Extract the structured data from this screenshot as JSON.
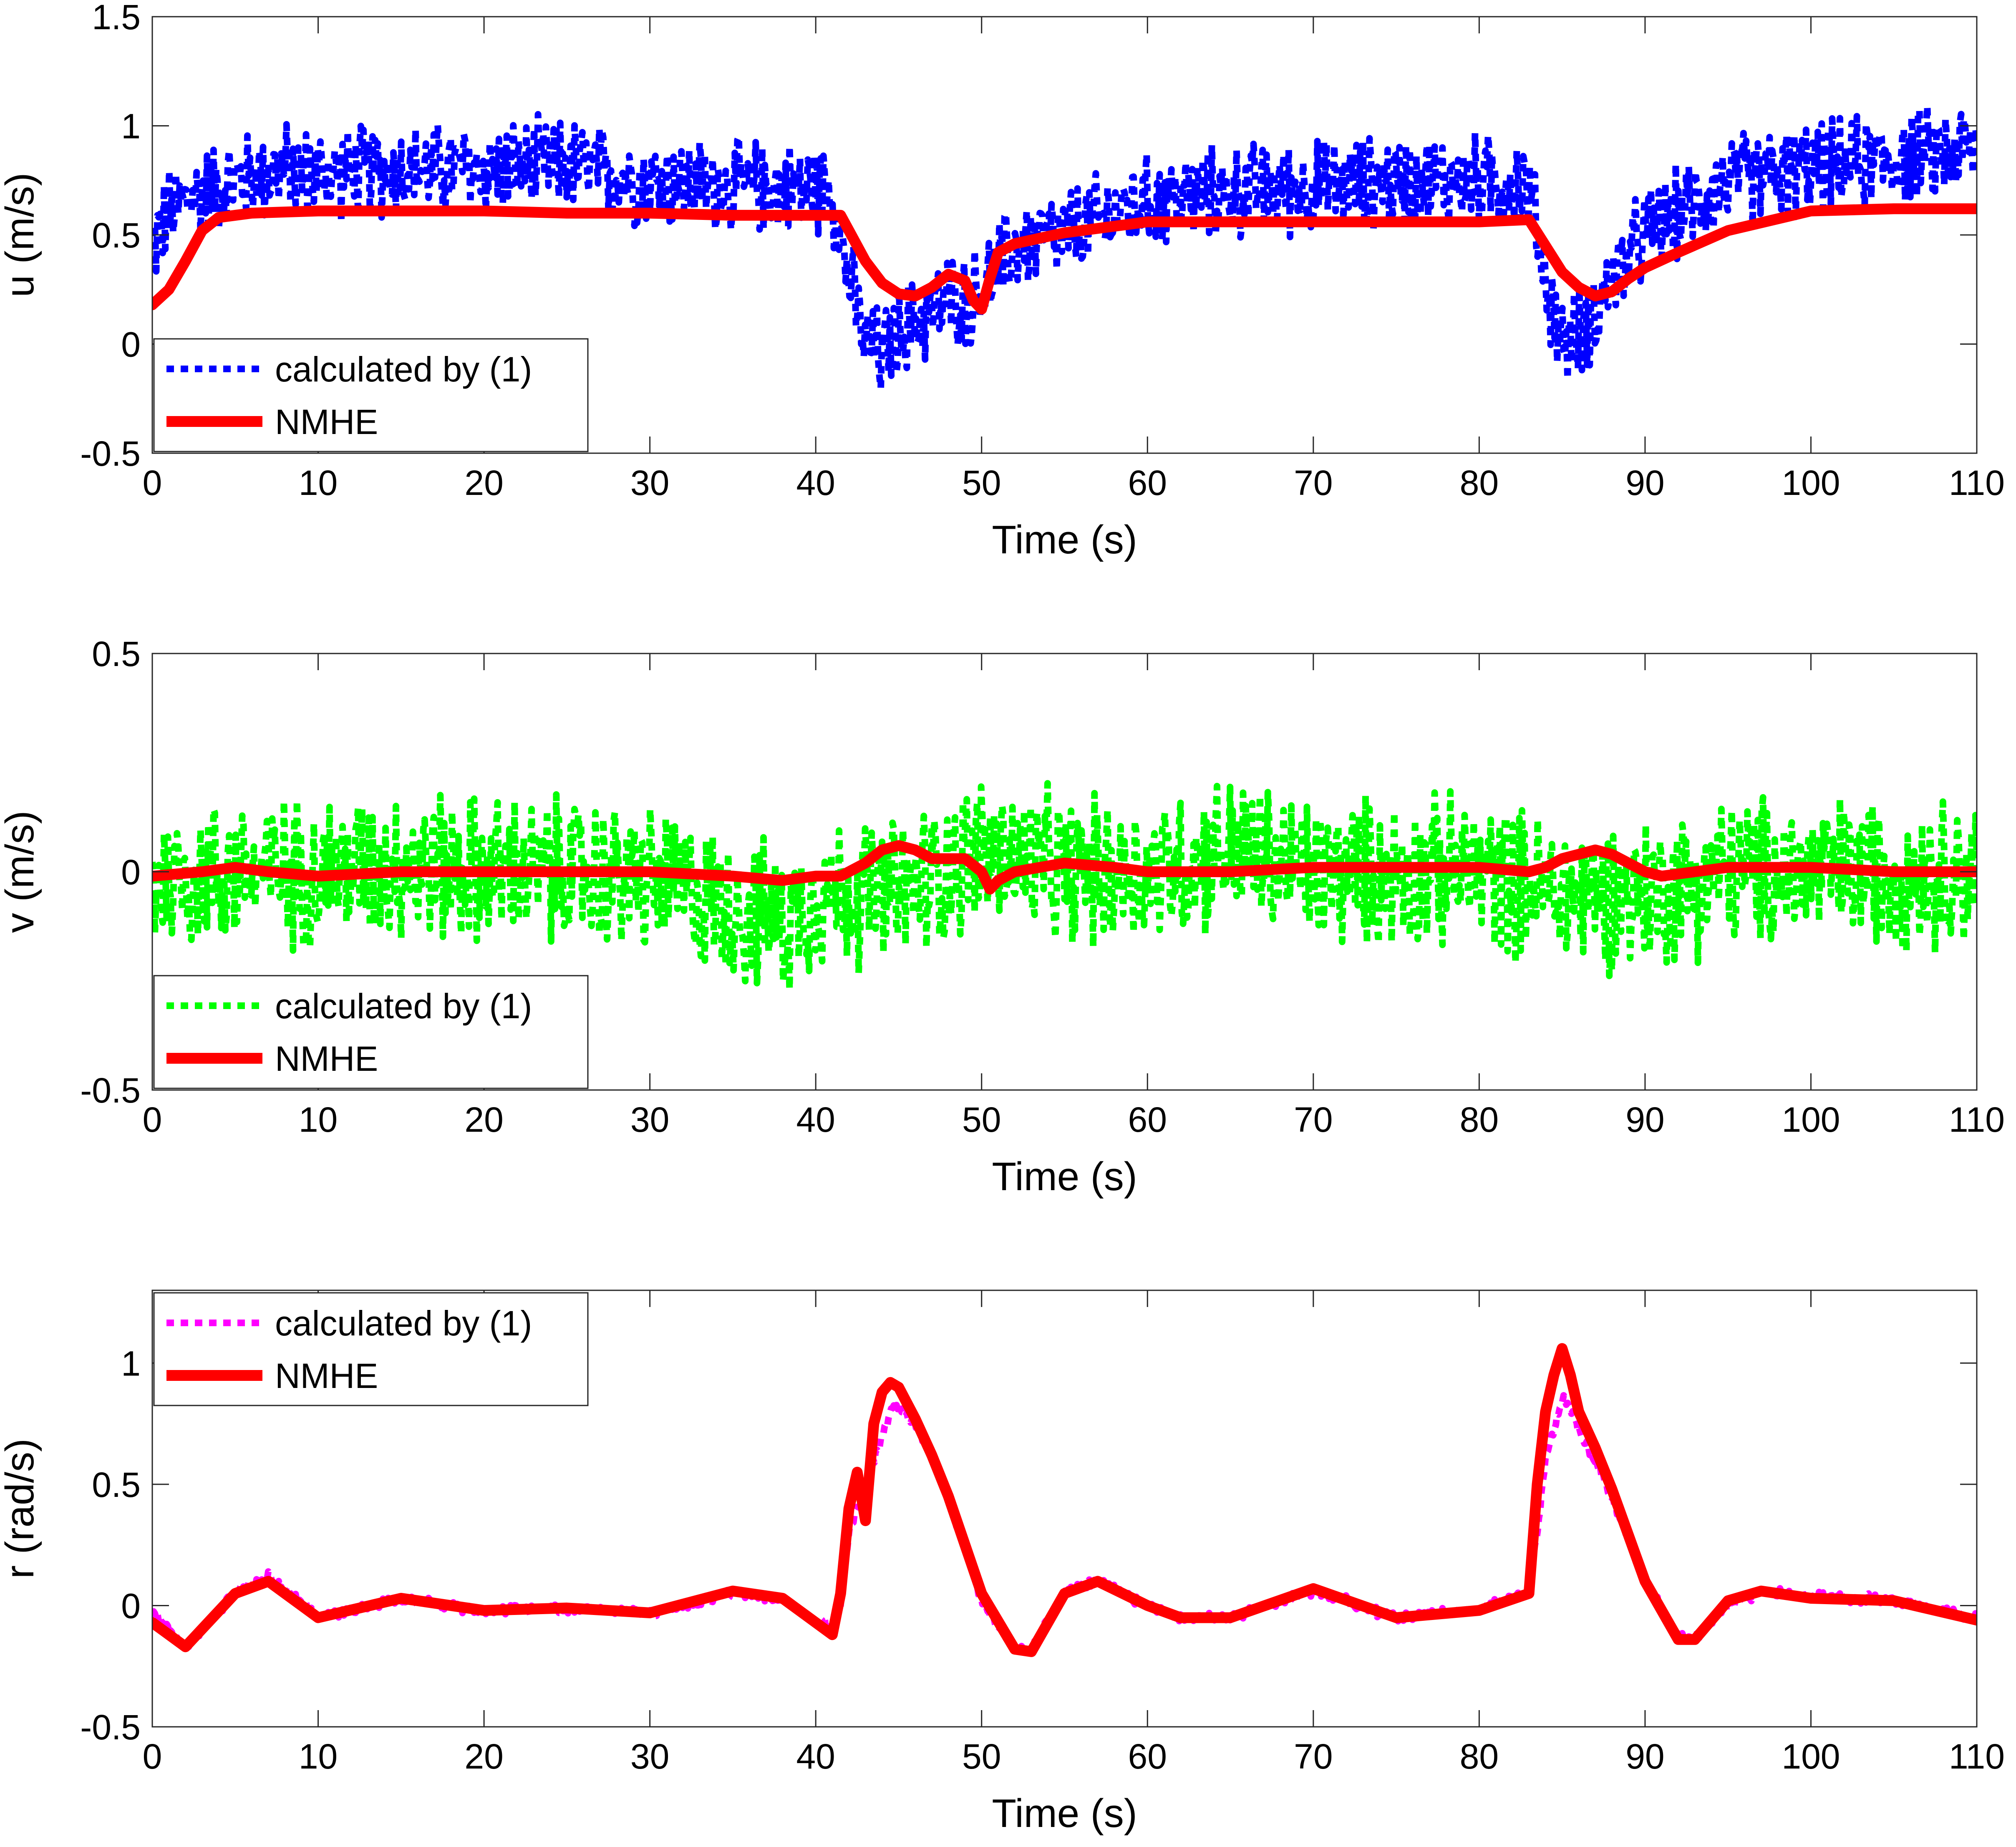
{
  "chart_data": [
    {
      "type": "line",
      "id": "u",
      "xlabel": "Time (s)",
      "ylabel": "u (m/s)",
      "xlim": [
        0,
        110
      ],
      "ylim": [
        -0.5,
        1.5
      ],
      "xticks": [
        "0",
        "10",
        "20",
        "30",
        "40",
        "50",
        "60",
        "70",
        "80",
        "90",
        "100",
        "110"
      ],
      "yticks": [
        "-0.5",
        "0",
        "0.5",
        "1",
        "1.5"
      ],
      "legend_position": "bottom-left",
      "series": [
        {
          "name": "calculated by (1)",
          "color": "#0000ff",
          "style": "dotted",
          "noise_amplitude": 0.25,
          "x": [
            0,
            1,
            3,
            5,
            8,
            10,
            15,
            20,
            25,
            30,
            35,
            40,
            41,
            42,
            43,
            44,
            45,
            46,
            47,
            48,
            49,
            50,
            51,
            52,
            55,
            58,
            60,
            65,
            70,
            75,
            80,
            82,
            83,
            84,
            85,
            86,
            87,
            88,
            89,
            90,
            92,
            95,
            100,
            105,
            110
          ],
          "y": [
            0.45,
            0.6,
            0.7,
            0.75,
            0.8,
            0.78,
            0.8,
            0.8,
            0.82,
            0.75,
            0.72,
            0.72,
            0.7,
            0.3,
            0.0,
            -0.05,
            0.05,
            0.1,
            0.15,
            0.2,
            0.2,
            0.25,
            0.35,
            0.45,
            0.5,
            0.6,
            0.65,
            0.7,
            0.72,
            0.75,
            0.75,
            0.75,
            0.72,
            0.3,
            0.0,
            0.05,
            0.15,
            0.3,
            0.4,
            0.5,
            0.6,
            0.75,
            0.8,
            0.85,
            0.9
          ]
        },
        {
          "name": "NMHE",
          "color": "#ff0000",
          "style": "solid",
          "x": [
            0,
            1,
            2,
            3,
            4,
            6,
            10,
            15,
            20,
            25,
            30,
            35,
            40,
            41.5,
            42,
            43,
            44,
            45,
            46,
            47,
            48,
            49,
            49.5,
            50,
            50.5,
            51,
            52,
            55,
            60,
            65,
            70,
            75,
            80,
            83,
            84,
            85,
            86,
            87,
            88,
            89,
            90,
            92,
            95,
            100,
            105,
            110
          ],
          "y": [
            0.18,
            0.25,
            0.38,
            0.52,
            0.58,
            0.6,
            0.61,
            0.61,
            0.61,
            0.6,
            0.6,
            0.59,
            0.59,
            0.59,
            0.52,
            0.38,
            0.28,
            0.23,
            0.22,
            0.26,
            0.32,
            0.29,
            0.2,
            0.16,
            0.3,
            0.42,
            0.46,
            0.51,
            0.56,
            0.56,
            0.56,
            0.56,
            0.56,
            0.57,
            0.45,
            0.33,
            0.26,
            0.22,
            0.24,
            0.3,
            0.35,
            0.42,
            0.52,
            0.61,
            0.62,
            0.62
          ]
        }
      ]
    },
    {
      "type": "line",
      "id": "v",
      "xlabel": "Time (s)",
      "ylabel": "v (m/s)",
      "xlim": [
        0,
        110
      ],
      "ylim": [
        -0.5,
        0.5
      ],
      "xticks": [
        "0",
        "10",
        "20",
        "30",
        "40",
        "50",
        "60",
        "70",
        "80",
        "90",
        "100",
        "110"
      ],
      "yticks": [
        "-0.5",
        "0",
        "0.5"
      ],
      "legend_position": "bottom-left",
      "series": [
        {
          "name": "calculated by (1)",
          "color": "#00ff00",
          "style": "dotted",
          "noise_amplitude": 0.2,
          "x": [
            0,
            5,
            10,
            15,
            20,
            25,
            30,
            35,
            38,
            40,
            45,
            50,
            55,
            60,
            65,
            70,
            75,
            80,
            85,
            90,
            95,
            100,
            105,
            110
          ],
          "y": [
            -0.02,
            0.0,
            0.0,
            0.02,
            0.0,
            0.0,
            -0.02,
            -0.08,
            -0.12,
            -0.05,
            -0.05,
            0.05,
            0.0,
            0.0,
            0.05,
            0.0,
            0.0,
            0.0,
            -0.05,
            -0.05,
            0.0,
            0.0,
            0.0,
            0.0
          ]
        },
        {
          "name": "NMHE",
          "color": "#ff0000",
          "style": "solid",
          "x": [
            0,
            3,
            5,
            7,
            10,
            15,
            20,
            25,
            30,
            35,
            38,
            40,
            41.5,
            43,
            44,
            45,
            46,
            47,
            48,
            49,
            50,
            50.5,
            51,
            52,
            55,
            58,
            60,
            65,
            70,
            75,
            80,
            83,
            84,
            85,
            86,
            87,
            88,
            89,
            90,
            91,
            93,
            95,
            100,
            105,
            110
          ],
          "y": [
            -0.01,
            0.0,
            0.01,
            0.0,
            -0.01,
            0.0,
            0.0,
            0.0,
            0.0,
            -0.01,
            -0.02,
            -0.01,
            -0.01,
            0.02,
            0.05,
            0.06,
            0.05,
            0.03,
            0.03,
            0.03,
            0.0,
            -0.04,
            -0.02,
            0.0,
            0.02,
            0.01,
            0.0,
            0.0,
            0.01,
            0.01,
            0.01,
            0.0,
            0.01,
            0.03,
            0.04,
            0.05,
            0.04,
            0.02,
            0.0,
            -0.01,
            0.0,
            0.01,
            0.01,
            0.0,
            0.0
          ]
        }
      ]
    },
    {
      "type": "line",
      "id": "r",
      "xlabel": "Time (s)",
      "ylabel": "r (rad/s)",
      "xlim": [
        0,
        110
      ],
      "ylim": [
        -0.5,
        1.3
      ],
      "xticks": [
        "0",
        "10",
        "20",
        "30",
        "40",
        "50",
        "60",
        "70",
        "80",
        "90",
        "100",
        "110"
      ],
      "yticks": [
        "-0.5",
        "0",
        "0.5",
        "1"
      ],
      "legend_position": "top-left",
      "series": [
        {
          "name": "calculated by (1)",
          "color": "#ff00ff",
          "style": "dotted",
          "noise_amplitude": 0.025,
          "x": [
            0,
            2,
            5,
            7,
            10,
            15,
            20,
            25,
            30,
            35,
            38,
            41,
            41.5,
            42,
            43,
            43.5,
            44,
            44.5,
            45,
            46,
            47,
            48,
            50,
            52,
            53,
            55,
            57,
            60,
            62,
            65,
            70,
            75,
            80,
            83,
            83.5,
            84,
            85,
            85.5,
            86,
            87,
            88,
            90,
            92,
            93,
            95,
            97,
            100,
            105,
            110
          ],
          "y": [
            -0.03,
            -0.17,
            0.05,
            0.12,
            -0.05,
            0.03,
            -0.02,
            -0.01,
            -0.03,
            0.05,
            0.03,
            -0.1,
            0.0,
            0.3,
            0.5,
            0.6,
            0.7,
            0.8,
            0.83,
            0.74,
            0.62,
            0.45,
            0.02,
            -0.18,
            -0.18,
            0.06,
            0.1,
            0.0,
            -0.05,
            -0.05,
            0.06,
            -0.05,
            -0.01,
            0.05,
            0.3,
            0.6,
            0.85,
            0.82,
            0.72,
            0.6,
            0.45,
            0.1,
            -0.12,
            -0.13,
            0.0,
            0.06,
            0.04,
            0.02,
            -0.05
          ]
        },
        {
          "name": "NMHE",
          "color": "#ff0000",
          "style": "solid",
          "x": [
            0,
            2,
            5,
            7,
            10,
            15,
            20,
            25,
            30,
            35,
            38,
            41,
            41.5,
            42,
            42.5,
            43,
            43.5,
            44,
            44.5,
            45,
            46,
            47,
            48,
            50,
            52,
            53,
            55,
            57,
            60,
            62,
            65,
            70,
            75,
            80,
            83,
            83.5,
            84,
            84.5,
            85,
            85.5,
            86,
            87,
            88,
            90,
            92,
            93,
            95,
            97,
            100,
            105,
            110
          ],
          "y": [
            -0.07,
            -0.17,
            0.05,
            0.1,
            -0.05,
            0.03,
            -0.02,
            -0.01,
            -0.03,
            0.06,
            0.03,
            -0.12,
            0.05,
            0.4,
            0.55,
            0.35,
            0.75,
            0.88,
            0.92,
            0.9,
            0.77,
            0.62,
            0.45,
            0.05,
            -0.18,
            -0.19,
            0.05,
            0.1,
            0.0,
            -0.05,
            -0.05,
            0.07,
            -0.05,
            -0.02,
            0.05,
            0.5,
            0.8,
            0.95,
            1.06,
            0.95,
            0.8,
            0.65,
            0.48,
            0.1,
            -0.14,
            -0.14,
            0.02,
            0.06,
            0.03,
            0.02,
            -0.06
          ]
        }
      ]
    }
  ]
}
